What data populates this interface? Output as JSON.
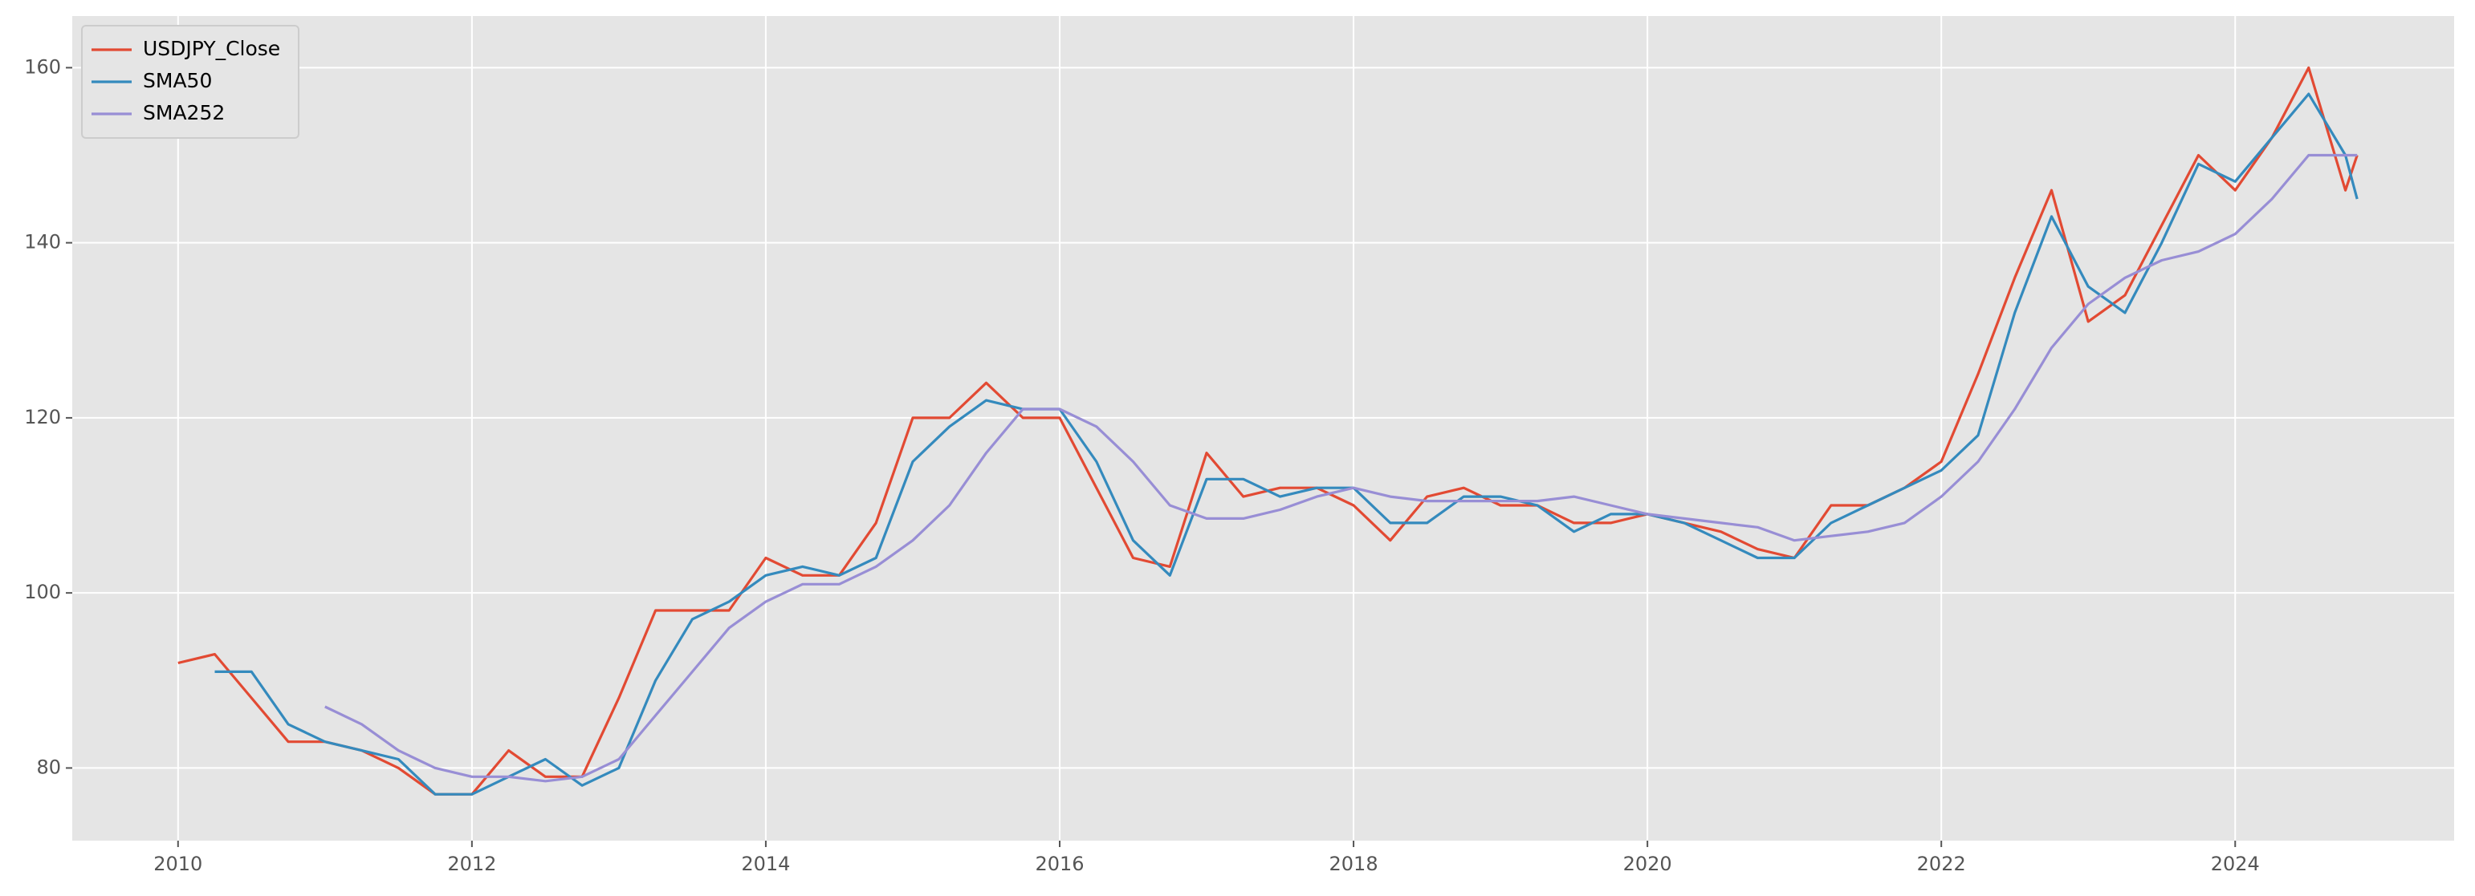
{
  "chart_data": {
    "type": "line",
    "x": [
      2010,
      2010.25,
      2010.5,
      2010.75,
      2011,
      2011.25,
      2011.5,
      2011.75,
      2012,
      2012.25,
      2012.5,
      2012.75,
      2013,
      2013.25,
      2013.5,
      2013.75,
      2014,
      2014.25,
      2014.5,
      2014.75,
      2015,
      2015.25,
      2015.5,
      2015.75,
      2016,
      2016.25,
      2016.5,
      2016.75,
      2017,
      2017.25,
      2017.5,
      2017.75,
      2018,
      2018.25,
      2018.5,
      2018.75,
      2019,
      2019.25,
      2019.5,
      2019.75,
      2020,
      2020.25,
      2020.5,
      2020.75,
      2021,
      2021.25,
      2021.5,
      2021.75,
      2022,
      2022.25,
      2022.5,
      2022.75,
      2023,
      2023.25,
      2023.5,
      2023.75,
      2024,
      2024.25,
      2024.5,
      2024.75,
      2024.83
    ],
    "series": [
      {
        "name": "USDJPY_Close",
        "color": "#E24A33",
        "values": [
          92,
          93,
          88,
          83,
          83,
          82,
          80,
          77,
          77,
          82,
          79,
          79,
          88,
          98,
          98,
          98,
          104,
          102,
          102,
          108,
          120,
          120,
          124,
          120,
          120,
          112,
          104,
          103,
          116,
          111,
          112,
          112,
          110,
          106,
          111,
          112,
          110,
          110,
          108,
          108,
          109,
          108,
          107,
          105,
          104,
          110,
          110,
          112,
          115,
          125,
          136,
          146,
          131,
          134,
          142,
          150,
          146,
          152,
          160,
          146,
          150
        ]
      },
      {
        "name": "SMA50",
        "color": "#348ABD",
        "values": [
          null,
          91,
          91,
          85,
          83,
          82,
          81,
          77,
          77,
          79,
          81,
          78,
          80,
          90,
          97,
          99,
          102,
          103,
          102,
          104,
          115,
          119,
          122,
          121,
          121,
          115,
          106,
          102,
          113,
          113,
          111,
          112,
          112,
          108,
          108,
          111,
          111,
          110,
          107,
          109,
          109,
          108,
          106,
          104,
          104,
          108,
          110,
          112,
          114,
          118,
          132,
          143,
          135,
          132,
          140,
          149,
          147,
          152,
          157,
          150,
          145
        ]
      },
      {
        "name": "SMA252",
        "color": "#988ED5",
        "values": [
          null,
          null,
          null,
          null,
          87,
          85,
          82,
          80,
          79,
          79,
          78.5,
          79,
          81,
          86,
          91,
          96,
          99,
          101,
          101,
          103,
          106,
          110,
          116,
          121,
          121,
          119,
          115,
          110,
          108.5,
          108.5,
          109.5,
          111,
          112,
          111,
          110.5,
          110.5,
          110.5,
          110.5,
          111,
          110,
          109,
          108.5,
          108,
          107.5,
          106,
          106.5,
          107,
          108,
          111,
          115,
          121,
          128,
          133,
          136,
          138,
          139,
          141,
          145,
          150,
          150,
          150
        ]
      }
    ],
    "xlim": [
      2009.28,
      2025.49
    ],
    "xticks": [
      2010,
      2012,
      2014,
      2016,
      2018,
      2020,
      2022,
      2024
    ],
    "ylim": [
      71.7,
      165.9
    ],
    "yticks": [
      80,
      100,
      120,
      140,
      160
    ],
    "grid": true,
    "legend": "upper left"
  }
}
